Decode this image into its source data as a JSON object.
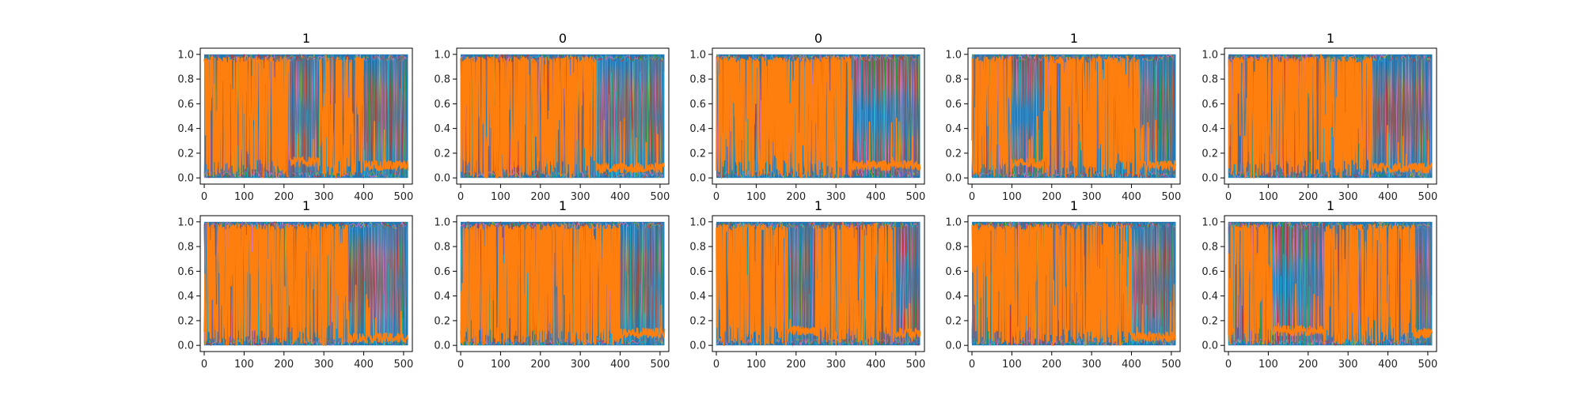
{
  "chart_data": {
    "type": "line",
    "layout": "2 rows x 5 columns of subplots",
    "shared_axes": {
      "xlim": [
        -10,
        522
      ],
      "ylim": [
        -0.05,
        1.05
      ],
      "xticks": [
        "0",
        "100",
        "200",
        "300",
        "400",
        "500"
      ],
      "yticks": [
        "0.0",
        "0.2",
        "0.4",
        "0.6",
        "0.8",
        "1.0"
      ],
      "grid": false
    },
    "colors": {
      "blue": "#1f77b4",
      "orange": "#ff7f0e",
      "cyan": "#17becf",
      "olive": "#bcbd22",
      "green": "#2ca02c",
      "red": "#d62728",
      "purple": "#9467bd",
      "pink": "#e377c2",
      "brown": "#8c564b",
      "gray": "#7f7f7f"
    },
    "panels": [
      {
        "title": "1",
        "orange_segments": [
          [
            0,
            215,
            0.55
          ],
          [
            215,
            290,
            0.13
          ],
          [
            290,
            400,
            0.6
          ],
          [
            400,
            512,
            0.1
          ]
        ]
      },
      {
        "title": "0",
        "orange_segments": [
          [
            0,
            340,
            0.55
          ],
          [
            340,
            512,
            0.08
          ]
        ]
      },
      {
        "title": "0",
        "orange_segments": [
          [
            0,
            340,
            0.5
          ],
          [
            340,
            512,
            0.1
          ]
        ]
      },
      {
        "title": "1",
        "orange_segments": [
          [
            0,
            100,
            0.6
          ],
          [
            100,
            180,
            0.12
          ],
          [
            180,
            310,
            0.6
          ],
          [
            310,
            420,
            0.55
          ],
          [
            420,
            512,
            0.1
          ]
        ]
      },
      {
        "title": "1",
        "orange_segments": [
          [
            0,
            360,
            0.55
          ],
          [
            360,
            512,
            0.08
          ]
        ]
      },
      {
        "title": "1",
        "orange_segments": [
          [
            0,
            360,
            0.45
          ],
          [
            360,
            512,
            0.06
          ]
        ]
      },
      {
        "title": "1",
        "orange_segments": [
          [
            0,
            400,
            0.55
          ],
          [
            400,
            512,
            0.1
          ]
        ]
      },
      {
        "title": "1",
        "orange_segments": [
          [
            0,
            180,
            0.55
          ],
          [
            180,
            250,
            0.12
          ],
          [
            250,
            450,
            0.6
          ],
          [
            450,
            512,
            0.1
          ]
        ]
      },
      {
        "title": "1",
        "orange_segments": [
          [
            0,
            400,
            0.6
          ],
          [
            400,
            512,
            0.07
          ]
        ]
      },
      {
        "title": "1",
        "orange_segments": [
          [
            0,
            110,
            0.6
          ],
          [
            110,
            240,
            0.12
          ],
          [
            240,
            470,
            0.6
          ],
          [
            470,
            512,
            0.1
          ]
        ]
      }
    ]
  }
}
